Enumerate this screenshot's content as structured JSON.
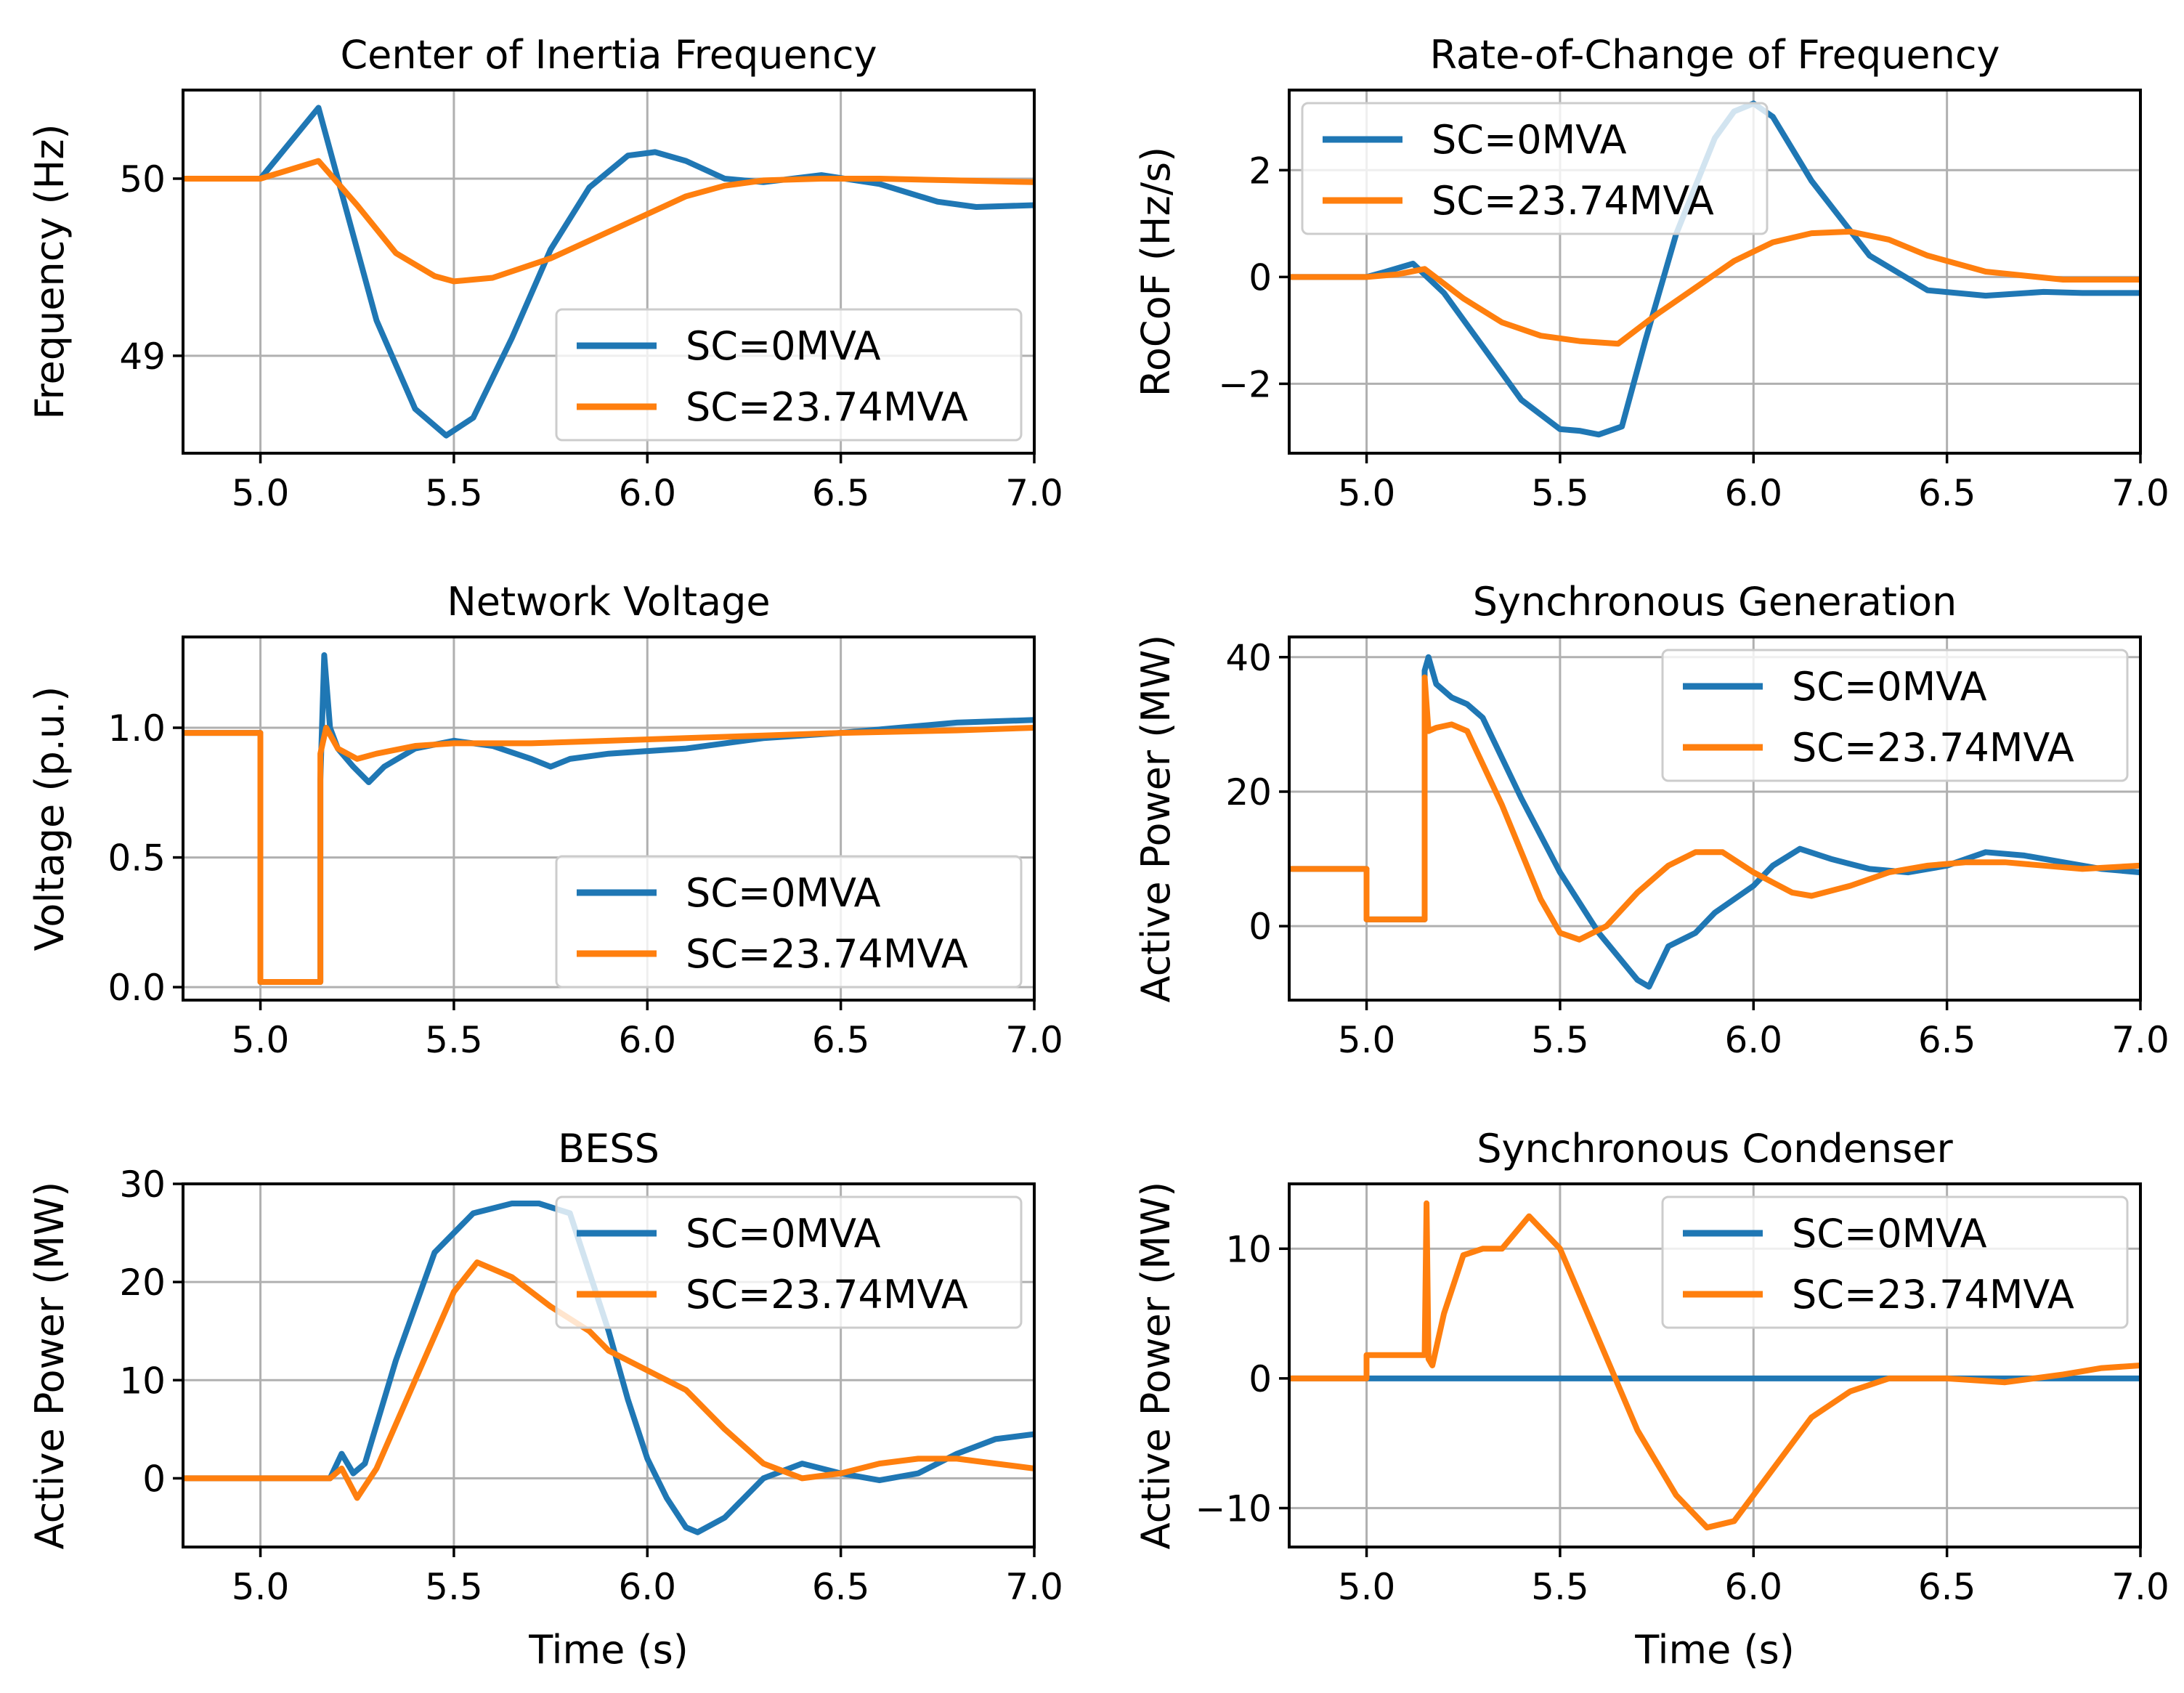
{
  "colors": {
    "blue": "#1f77b4",
    "orange": "#ff7f0e"
  },
  "chart_data": [
    {
      "type": "line",
      "title": "Center of Inertia Frequency",
      "xlabel": "",
      "ylabel": "Frequency (Hz)",
      "xlim": [
        4.8,
        7.0
      ],
      "ylim": [
        48.45,
        50.5
      ],
      "xticks": [
        5.0,
        5.5,
        6.0,
        6.5,
        7.0
      ],
      "xticklabels": [
        "5.0",
        "5.5",
        "6.0",
        "6.5",
        "7.0"
      ],
      "yticks": [
        49,
        50
      ],
      "yticklabels": [
        "49",
        "50"
      ],
      "legend": "lower-right",
      "series": [
        {
          "name": "SC=0MVA",
          "color": "#1f77b4",
          "x": [
            4.8,
            5.0,
            5.15,
            5.2,
            5.3,
            5.4,
            5.48,
            5.55,
            5.65,
            5.75,
            5.85,
            5.95,
            6.02,
            6.1,
            6.2,
            6.3,
            6.45,
            6.6,
            6.75,
            6.85,
            7.0
          ],
          "y": [
            50,
            50,
            50.4,
            50.0,
            49.2,
            48.7,
            48.55,
            48.65,
            49.1,
            49.6,
            49.95,
            50.13,
            50.15,
            50.1,
            50.0,
            49.98,
            50.02,
            49.97,
            49.87,
            49.84,
            49.85
          ]
        },
        {
          "name": "SC=23.74MVA",
          "color": "#ff7f0e",
          "x": [
            4.8,
            5.0,
            5.15,
            5.25,
            5.35,
            5.45,
            5.5,
            5.6,
            5.75,
            5.9,
            6.0,
            6.1,
            6.2,
            6.3,
            6.45,
            6.6,
            6.8,
            7.0
          ],
          "y": [
            50,
            50,
            50.1,
            49.85,
            49.58,
            49.45,
            49.42,
            49.44,
            49.55,
            49.7,
            49.8,
            49.9,
            49.96,
            49.99,
            50.0,
            50.0,
            49.99,
            49.98
          ]
        }
      ]
    },
    {
      "type": "line",
      "title": "Rate-of-Change of Frequency",
      "xlabel": "",
      "ylabel": "RoCoF (Hz/s)",
      "xlim": [
        4.8,
        7.0
      ],
      "ylim": [
        -3.3,
        3.5
      ],
      "xticks": [
        5.0,
        5.5,
        6.0,
        6.5,
        7.0
      ],
      "xticklabels": [
        "5.0",
        "5.5",
        "6.0",
        "6.5",
        "7.0"
      ],
      "yticks": [
        -2,
        0,
        2
      ],
      "yticklabels": [
        "−2",
        "0",
        "2"
      ],
      "legend": "upper-left",
      "series": [
        {
          "name": "SC=0MVA",
          "color": "#1f77b4",
          "x": [
            4.8,
            5.0,
            5.05,
            5.12,
            5.2,
            5.3,
            5.4,
            5.5,
            5.55,
            5.6,
            5.66,
            5.72,
            5.8,
            5.9,
            5.95,
            6.0,
            6.05,
            6.15,
            6.3,
            6.45,
            6.6,
            6.75,
            6.85,
            7.0
          ],
          "y": [
            0,
            0,
            0.1,
            0.25,
            -0.3,
            -1.3,
            -2.3,
            -2.85,
            -2.88,
            -2.95,
            -2.8,
            -1.2,
            0.8,
            2.6,
            3.1,
            3.25,
            3.0,
            1.8,
            0.4,
            -0.25,
            -0.35,
            -0.28,
            -0.3,
            -0.3
          ]
        },
        {
          "name": "SC=23.74MVA",
          "color": "#ff7f0e",
          "x": [
            4.8,
            5.0,
            5.08,
            5.15,
            5.25,
            5.35,
            5.45,
            5.55,
            5.65,
            5.75,
            5.85,
            5.95,
            6.05,
            6.15,
            6.25,
            6.35,
            6.45,
            6.6,
            6.8,
            7.0
          ],
          "y": [
            0,
            0,
            0.05,
            0.15,
            -0.4,
            -0.85,
            -1.1,
            -1.2,
            -1.25,
            -0.7,
            -0.2,
            0.3,
            0.65,
            0.82,
            0.85,
            0.7,
            0.4,
            0.1,
            -0.05,
            -0.05
          ]
        }
      ]
    },
    {
      "type": "line",
      "title": "Network Voltage",
      "xlabel": "",
      "ylabel": "Voltage (p.u.)",
      "xlim": [
        4.8,
        7.0
      ],
      "ylim": [
        -0.05,
        1.35
      ],
      "xticks": [
        5.0,
        5.5,
        6.0,
        6.5,
        7.0
      ],
      "xticklabels": [
        "5.0",
        "5.5",
        "6.0",
        "6.5",
        "7.0"
      ],
      "yticks": [
        0.0,
        0.5,
        1.0
      ],
      "yticklabels": [
        "0.0",
        "0.5",
        "1.0"
      ],
      "legend": "lower-right",
      "series": [
        {
          "name": "SC=0MVA",
          "color": "#1f77b4",
          "x": [
            4.8,
            5.0,
            5.0,
            5.155,
            5.155,
            5.165,
            5.18,
            5.2,
            5.24,
            5.28,
            5.32,
            5.4,
            5.5,
            5.6,
            5.7,
            5.75,
            5.8,
            5.9,
            6.0,
            6.1,
            6.3,
            6.5,
            6.8,
            7.0
          ],
          "y": [
            0.98,
            0.98,
            0.02,
            0.02,
            0.8,
            1.28,
            1.0,
            0.92,
            0.85,
            0.79,
            0.85,
            0.92,
            0.95,
            0.93,
            0.88,
            0.85,
            0.88,
            0.9,
            0.91,
            0.92,
            0.96,
            0.98,
            1.02,
            1.03
          ]
        },
        {
          "name": "SC=23.74MVA",
          "color": "#ff7f0e",
          "x": [
            4.8,
            5.0,
            5.0,
            5.155,
            5.155,
            5.17,
            5.2,
            5.25,
            5.3,
            5.4,
            5.5,
            5.7,
            5.9,
            6.1,
            6.3,
            6.5,
            6.8,
            7.0
          ],
          "y": [
            0.98,
            0.98,
            0.02,
            0.02,
            0.9,
            1.0,
            0.92,
            0.88,
            0.9,
            0.93,
            0.94,
            0.94,
            0.95,
            0.96,
            0.97,
            0.98,
            0.99,
            1.0
          ]
        }
      ]
    },
    {
      "type": "line",
      "title": "Synchronous Generation",
      "xlabel": "",
      "ylabel": "Active Power (MW)",
      "xlim": [
        4.8,
        7.0
      ],
      "ylim": [
        -11,
        43
      ],
      "xticks": [
        5.0,
        5.5,
        6.0,
        6.5,
        7.0
      ],
      "xticklabels": [
        "5.0",
        "5.5",
        "6.0",
        "6.5",
        "7.0"
      ],
      "yticks": [
        0,
        20,
        40
      ],
      "yticklabels": [
        "0",
        "20",
        "40"
      ],
      "legend": "upper-right",
      "series": [
        {
          "name": "SC=0MVA",
          "color": "#1f77b4",
          "x": [
            4.8,
            5.0,
            5.0,
            5.15,
            5.15,
            5.16,
            5.18,
            5.22,
            5.26,
            5.3,
            5.4,
            5.5,
            5.6,
            5.7,
            5.73,
            5.78,
            5.85,
            5.9,
            6.0,
            6.05,
            6.12,
            6.2,
            6.3,
            6.4,
            6.5,
            6.6,
            6.7,
            6.8,
            6.9,
            7.0
          ],
          "y": [
            8.5,
            8.5,
            1,
            1,
            38,
            40,
            36,
            34,
            33,
            31,
            19,
            8,
            -1,
            -8,
            -9,
            -3,
            -1,
            2,
            6,
            9,
            11.5,
            10,
            8.5,
            8,
            9,
            11,
            10.5,
            9.5,
            8.5,
            8
          ]
        },
        {
          "name": "SC=23.74MVA",
          "color": "#ff7f0e",
          "x": [
            4.8,
            5.0,
            5.0,
            5.15,
            5.15,
            5.16,
            5.18,
            5.22,
            5.26,
            5.35,
            5.45,
            5.5,
            5.55,
            5.62,
            5.7,
            5.78,
            5.85,
            5.92,
            6.0,
            6.1,
            6.15,
            6.25,
            6.35,
            6.45,
            6.55,
            6.65,
            6.75,
            6.85,
            7.0
          ],
          "y": [
            8.5,
            8.5,
            1,
            1,
            37,
            29,
            29.5,
            30,
            29,
            18,
            4,
            -1,
            -2,
            0,
            5,
            9,
            11,
            11,
            8,
            5,
            4.5,
            6,
            8,
            9,
            9.5,
            9.5,
            9,
            8.5,
            9
          ]
        }
      ]
    },
    {
      "type": "line",
      "title": "BESS",
      "xlabel": "Time (s)",
      "ylabel": "Active Power (MW)",
      "xlim": [
        4.8,
        7.0
      ],
      "ylim": [
        -7,
        30
      ],
      "xticks": [
        5.0,
        5.5,
        6.0,
        6.5,
        7.0
      ],
      "xticklabels": [
        "5.0",
        "5.5",
        "6.0",
        "6.5",
        "7.0"
      ],
      "yticks": [
        0,
        10,
        20,
        30
      ],
      "yticklabels": [
        "0",
        "10",
        "20",
        "30"
      ],
      "legend": "upper-right",
      "series": [
        {
          "name": "SC=0MVA",
          "color": "#1f77b4",
          "x": [
            4.8,
            5.0,
            5.18,
            5.21,
            5.24,
            5.27,
            5.35,
            5.45,
            5.55,
            5.65,
            5.72,
            5.8,
            5.9,
            5.95,
            6.0,
            6.05,
            6.1,
            6.13,
            6.2,
            6.3,
            6.4,
            6.5,
            6.6,
            6.7,
            6.8,
            6.9,
            7.0
          ],
          "y": [
            0,
            0,
            0,
            2.5,
            0.5,
            1.5,
            12,
            23,
            27,
            28,
            28,
            27,
            15,
            8,
            2,
            -2,
            -5,
            -5.5,
            -4,
            0,
            1.5,
            0.5,
            -0.2,
            0.5,
            2.5,
            4,
            4.5
          ]
        },
        {
          "name": "SC=23.74MVA",
          "color": "#ff7f0e",
          "x": [
            4.8,
            5.0,
            5.18,
            5.21,
            5.25,
            5.3,
            5.4,
            5.5,
            5.56,
            5.65,
            5.75,
            5.85,
            5.9,
            6.0,
            6.1,
            6.2,
            6.3,
            6.4,
            6.5,
            6.6,
            6.7,
            6.8,
            6.9,
            7.0
          ],
          "y": [
            0,
            0,
            0,
            1,
            -2,
            1,
            10,
            19,
            22,
            20.5,
            17.5,
            15,
            13,
            11,
            9,
            5,
            1.5,
            0,
            0.5,
            1.5,
            2,
            2,
            1.5,
            1
          ]
        }
      ]
    },
    {
      "type": "line",
      "title": "Synchronous Condenser",
      "xlabel": "Time (s)",
      "ylabel": "Active Power (MW)",
      "xlim": [
        4.8,
        7.0
      ],
      "ylim": [
        -13,
        15
      ],
      "xticks": [
        5.0,
        5.5,
        6.0,
        6.5,
        7.0
      ],
      "xticklabels": [
        "5.0",
        "5.5",
        "6.0",
        "6.5",
        "7.0"
      ],
      "yticks": [
        -10,
        0,
        10
      ],
      "yticklabels": [
        "−10",
        "0",
        "10"
      ],
      "legend": "upper-right",
      "series": [
        {
          "name": "SC=0MVA",
          "color": "#1f77b4",
          "x": [
            4.8,
            7.0
          ],
          "y": [
            0,
            0
          ]
        },
        {
          "name": "SC=23.74MVA",
          "color": "#ff7f0e",
          "x": [
            4.8,
            5.0,
            5.0,
            5.15,
            5.155,
            5.16,
            5.17,
            5.2,
            5.25,
            5.3,
            5.35,
            5.42,
            5.5,
            5.6,
            5.7,
            5.8,
            5.88,
            5.95,
            6.05,
            6.15,
            6.25,
            6.35,
            6.5,
            6.65,
            6.8,
            6.9,
            7.0
          ],
          "y": [
            0,
            0,
            1.8,
            1.8,
            13.5,
            1.5,
            1,
            5,
            9.5,
            10,
            10,
            12.5,
            10,
            3,
            -4,
            -9,
            -11.5,
            -11,
            -7,
            -3,
            -1,
            0,
            0,
            -0.3,
            0.3,
            0.8,
            1
          ]
        }
      ]
    }
  ]
}
